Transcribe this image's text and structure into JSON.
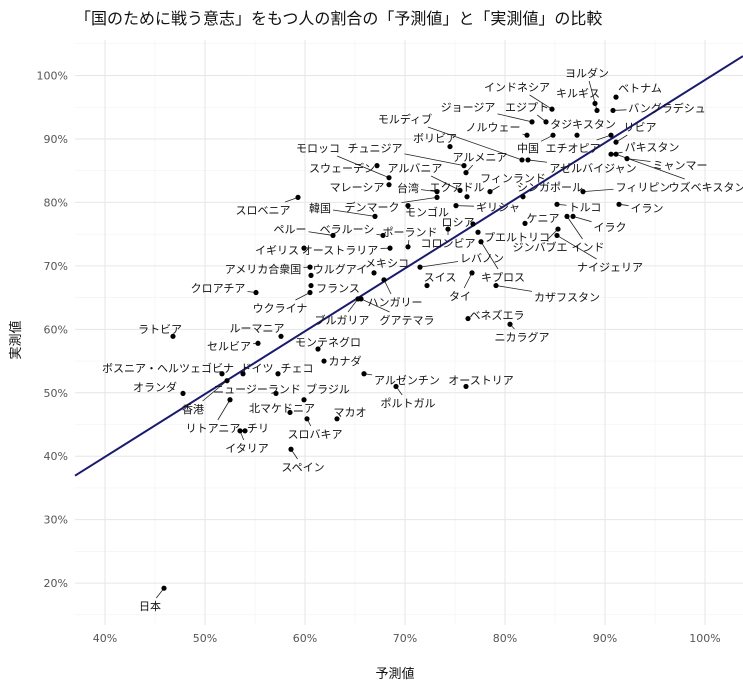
{
  "chart_data": {
    "type": "scatter",
    "title": "「国のために戦う意志」をもつ人の割合の「予測値」と「実測値」の比較",
    "xlabel": "予測値",
    "ylabel": "実測値",
    "xlim": [
      37,
      103.8
    ],
    "ylim": [
      13.4,
      105.6
    ],
    "grid": true,
    "x_ticks": [
      "40%",
      "50%",
      "60%",
      "70%",
      "80%",
      "90%",
      "100%"
    ],
    "x_tick_values": [
      40,
      50,
      60,
      70,
      80,
      90,
      100
    ],
    "y_ticks": [
      "20%",
      "30%",
      "40%",
      "50%",
      "60%",
      "70%",
      "80%",
      "90%",
      "100%"
    ],
    "y_tick_values": [
      20,
      30,
      40,
      50,
      60,
      70,
      80,
      90,
      100
    ],
    "fit_line": {
      "slope": 0.99,
      "intercept": 0.3,
      "color": "#1a1a6e"
    },
    "point_color": "#000000",
    "points": [
      {
        "name": "ヨルダン",
        "x": 89.2,
        "y": 94.5
      },
      {
        "name": "キルギス",
        "x": 89.0,
        "y": 95.6
      },
      {
        "name": "ベトナム",
        "x": 91.1,
        "y": 96.6
      },
      {
        "name": "バングラデシュ",
        "x": 90.8,
        "y": 94.5
      },
      {
        "name": "インドネシア",
        "x": 84.7,
        "y": 94.7
      },
      {
        "name": "ジョージア",
        "x": 82.7,
        "y": 92.7
      },
      {
        "name": "エジプト",
        "x": 84.1,
        "y": 92.7
      },
      {
        "name": "ノルウェー",
        "x": 82.2,
        "y": 90.6
      },
      {
        "name": "中国",
        "x": 84.8,
        "y": 90.6
      },
      {
        "name": "タジキスタン",
        "x": 87.2,
        "y": 90.6
      },
      {
        "name": "エチオピア",
        "x": 90.6,
        "y": 90.6
      },
      {
        "name": "リビア",
        "x": 91.1,
        "y": 89.5
      },
      {
        "name": "パキスタン",
        "x": 90.6,
        "y": 87.6
      },
      {
        "name": "ミャンマー",
        "x": 92.2,
        "y": 86.9
      },
      {
        "name": "ウズベキスタン",
        "x": 91.1,
        "y": 87.6
      },
      {
        "name": "フィリピン",
        "x": 87.8,
        "y": 81.7
      },
      {
        "name": "モルディブ",
        "x": 81.7,
        "y": 86.7
      },
      {
        "name": "アゼルバイジャン",
        "x": 82.3,
        "y": 86.7
      },
      {
        "name": "ボリビア",
        "x": 74.5,
        "y": 88.8
      },
      {
        "name": "モロッコ",
        "x": 68.4,
        "y": 83.9
      },
      {
        "name": "チュニジア",
        "x": 75.9,
        "y": 85.8
      },
      {
        "name": "スウェーデン",
        "x": 67.2,
        "y": 85.8
      },
      {
        "name": "アルバニア",
        "x": 75.5,
        "y": 81.9
      },
      {
        "name": "アルメニア",
        "x": 76.1,
        "y": 84.7
      },
      {
        "name": "マレーシア",
        "x": 68.4,
        "y": 82.8
      },
      {
        "name": "台湾",
        "x": 73.2,
        "y": 81.7
      },
      {
        "name": "エクアドル",
        "x": 76.2,
        "y": 80.9
      },
      {
        "name": "フィンランド",
        "x": 78.5,
        "y": 81.7
      },
      {
        "name": "シンガポール",
        "x": 81.8,
        "y": 80.9
      },
      {
        "name": "トルコ",
        "x": 85.2,
        "y": 79.7
      },
      {
        "name": "イラン",
        "x": 91.4,
        "y": 79.7
      },
      {
        "name": "スロベニア",
        "x": 59.3,
        "y": 80.8
      },
      {
        "name": "韓国",
        "x": 67.0,
        "y": 77.8
      },
      {
        "name": "デンマーク",
        "x": 73.2,
        "y": 80.8
      },
      {
        "name": "モンゴル",
        "x": 70.3,
        "y": 79.5
      },
      {
        "name": "ギリシャ",
        "x": 75.1,
        "y": 79.5
      },
      {
        "name": "ペルー",
        "x": 62.8,
        "y": 74.8
      },
      {
        "name": "ベラルーシ",
        "x": 67.8,
        "y": 74.8
      },
      {
        "name": "ポーランド",
        "x": 70.3,
        "y": 73.0
      },
      {
        "name": "ロシア",
        "x": 76.8,
        "y": 76.6
      },
      {
        "name": "プエルトリコ",
        "x": 77.3,
        "y": 75.3
      },
      {
        "name": "コロンビア",
        "x": 74.3,
        "y": 75.8
      },
      {
        "name": "レバノン",
        "x": 71.5,
        "y": 69.8
      },
      {
        "name": "キプロス",
        "x": 77.6,
        "y": 73.8
      },
      {
        "name": "イギリス",
        "x": 59.9,
        "y": 72.8
      },
      {
        "name": "オーストラリア",
        "x": 68.5,
        "y": 72.8
      },
      {
        "name": "メキシコ",
        "x": 66.9,
        "y": 68.9
      },
      {
        "name": "アメリカ合衆国",
        "x": 60.5,
        "y": 69.8
      },
      {
        "name": "ウルグアイ",
        "x": 60.6,
        "y": 68.5
      },
      {
        "name": "ハンガリー",
        "x": 67.9,
        "y": 67.8
      },
      {
        "name": "ケニア",
        "x": 82.0,
        "y": 76.7
      },
      {
        "name": "イラク",
        "x": 86.8,
        "y": 77.8
      },
      {
        "name": "インド",
        "x": 86.2,
        "y": 77.8
      },
      {
        "name": "ジンバブエ",
        "x": 85.3,
        "y": 75.8
      },
      {
        "name": "ナイジェリア",
        "x": 85.2,
        "y": 74.8
      },
      {
        "name": "スイス",
        "x": 72.2,
        "y": 66.9
      },
      {
        "name": "タイ",
        "x": 76.7,
        "y": 68.9
      },
      {
        "name": "カザフスタン",
        "x": 79.1,
        "y": 66.9
      },
      {
        "name": "フランス",
        "x": 60.6,
        "y": 66.9
      },
      {
        "name": "ウクライナ",
        "x": 60.5,
        "y": 65.8
      },
      {
        "name": "クロアチア",
        "x": 55.1,
        "y": 65.8
      },
      {
        "name": "ブルガリア",
        "x": 65.3,
        "y": 64.8
      },
      {
        "name": "グアテマラ",
        "x": 65.6,
        "y": 64.8
      },
      {
        "name": "ベネズエラ",
        "x": 76.3,
        "y": 61.7
      },
      {
        "name": "ニカラグア",
        "x": 80.5,
        "y": 60.8
      },
      {
        "name": "ルーマニア",
        "x": 57.6,
        "y": 58.9
      },
      {
        "name": "ラトビア",
        "x": 46.8,
        "y": 58.9
      },
      {
        "name": "セルビア",
        "x": 55.3,
        "y": 57.8
      },
      {
        "name": "モンテネグロ",
        "x": 61.3,
        "y": 56.9
      },
      {
        "name": "カナダ",
        "x": 61.9,
        "y": 55.0
      },
      {
        "name": "ボスニア・ヘルツェゴビナ",
        "x": 51.7,
        "y": 53.0
      },
      {
        "name": "ドイツ",
        "x": 53.8,
        "y": 53.0
      },
      {
        "name": "チェコ",
        "x": 57.3,
        "y": 53.0
      },
      {
        "name": "オランダ",
        "x": 47.8,
        "y": 49.9
      },
      {
        "name": "香港",
        "x": 52.2,
        "y": 51.9
      },
      {
        "name": "ニュージーランド",
        "x": 57.1,
        "y": 49.9
      },
      {
        "name": "ブラジル",
        "x": 59.9,
        "y": 48.9
      },
      {
        "name": "アルゼンチン",
        "x": 65.9,
        "y": 53.0
      },
      {
        "name": "オーストリア",
        "x": 76.1,
        "y": 51.0
      },
      {
        "name": "ポルトガル",
        "x": 69.1,
        "y": 51.0
      },
      {
        "name": "北マケドニア",
        "x": 58.5,
        "y": 46.9
      },
      {
        "name": "リトアニア",
        "x": 52.5,
        "y": 48.9
      },
      {
        "name": "マカオ",
        "x": 63.2,
        "y": 45.9
      },
      {
        "name": "スロバキア",
        "x": 60.2,
        "y": 45.9
      },
      {
        "name": "チリ",
        "x": 54.0,
        "y": 44.0
      },
      {
        "name": "イタリア",
        "x": 53.5,
        "y": 44.0
      },
      {
        "name": "スペイン",
        "x": 58.6,
        "y": 41.1
      },
      {
        "name": "日本",
        "x": 45.9,
        "y": 19.2
      }
    ]
  }
}
